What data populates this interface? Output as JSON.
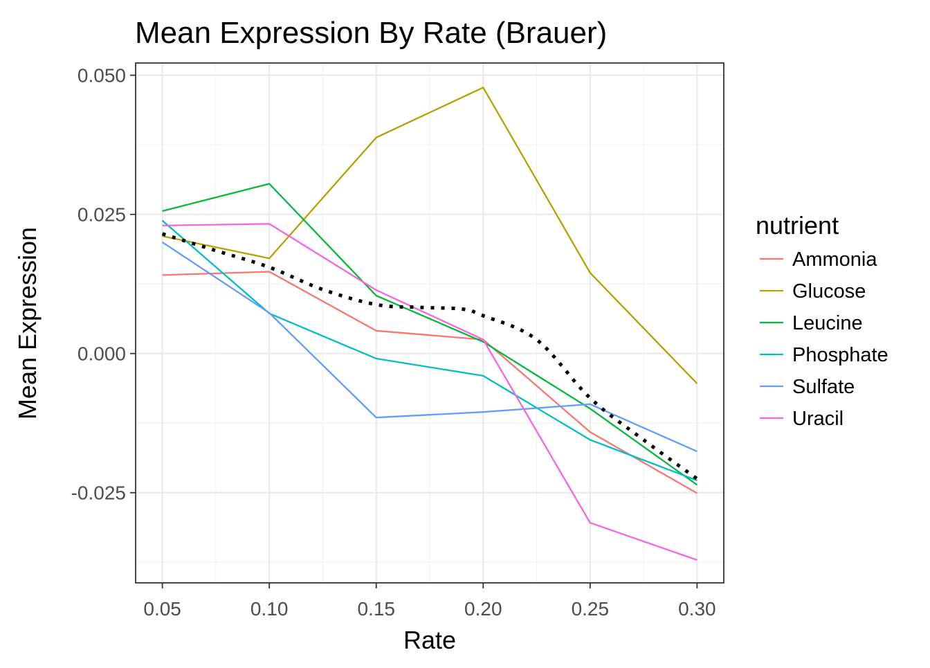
{
  "chart_data": {
    "type": "line",
    "title": "Mean Expression By Rate (Brauer)",
    "xlabel": "Rate",
    "ylabel": "Mean Expression",
    "x": [
      0.05,
      0.1,
      0.15,
      0.2,
      0.25,
      0.3
    ],
    "x_tick_labels": [
      "0.05",
      "0.10",
      "0.15",
      "0.20",
      "0.25",
      "0.30"
    ],
    "y_ticks": [
      -0.025,
      0.0,
      0.025,
      0.05
    ],
    "y_tick_labels": [
      "-0.025",
      "0.000",
      "0.025",
      "0.050"
    ],
    "xlim": [
      0.0375,
      0.3125
    ],
    "ylim": [
      -0.0412,
      0.0522
    ],
    "grid": true,
    "legend": {
      "title": "nutrient",
      "position": "right"
    },
    "series": [
      {
        "name": "Ammonia",
        "color": "#F8766D",
        "values": [
          0.0141,
          0.0147,
          0.0041,
          0.0025,
          -0.0141,
          -0.0251
        ]
      },
      {
        "name": "Glucose",
        "color": "#B79F00",
        "values": [
          0.0211,
          0.0171,
          0.0388,
          0.0478,
          0.0145,
          -0.0054
        ]
      },
      {
        "name": "Leucine",
        "color": "#00BA38",
        "values": [
          0.0256,
          0.0305,
          0.0104,
          0.0021,
          -0.0099,
          -0.0236
        ]
      },
      {
        "name": "Phosphate",
        "color": "#00BFC4",
        "values": [
          0.0239,
          0.0072,
          -0.0009,
          -0.004,
          -0.0155,
          -0.0228
        ]
      },
      {
        "name": "Sulfate",
        "color": "#619CFF",
        "values": [
          0.02,
          0.0073,
          -0.0115,
          -0.0105,
          -0.0091,
          -0.0176
        ]
      },
      {
        "name": "Uracil",
        "color": "#F564E3",
        "values": [
          0.023,
          0.0233,
          0.0114,
          0.0025,
          -0.0304,
          -0.0371
        ]
      }
    ],
    "trend": {
      "style": "dotted",
      "color": "#000000",
      "x": [
        0.05,
        0.075,
        0.1,
        0.125,
        0.15,
        0.17,
        0.19,
        0.2,
        0.225,
        0.25,
        0.275,
        0.3
      ],
      "values": [
        0.0215,
        0.0185,
        0.0155,
        0.0115,
        0.0088,
        0.0083,
        0.008,
        0.0068,
        0.0025,
        -0.008,
        -0.0155,
        -0.0225
      ]
    }
  }
}
